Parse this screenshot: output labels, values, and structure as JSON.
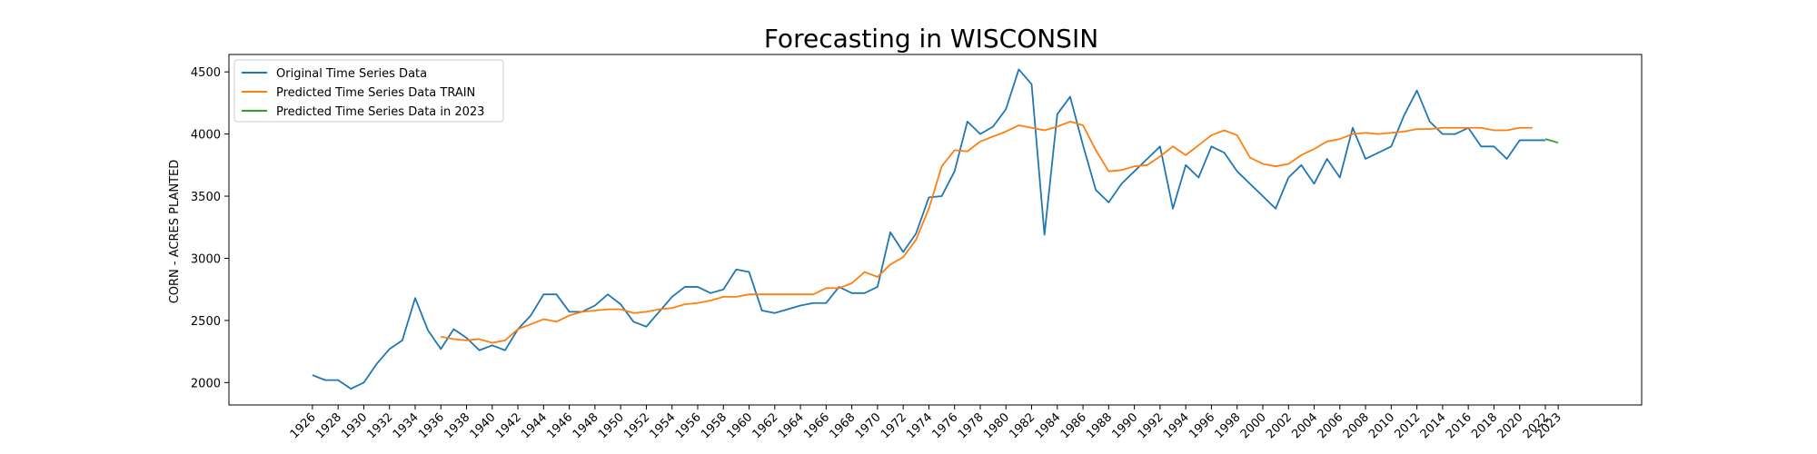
{
  "chart_data": {
    "type": "line",
    "title": "Forecasting in WISCONSIN",
    "xlabel": "",
    "ylabel": "CORN - ACRES PLANTED",
    "xlim": [
      1919.5,
      2029.5
    ],
    "ylim": [
      1820,
      4640
    ],
    "yticks": [
      2000,
      2500,
      3000,
      3500,
      4000,
      4500
    ],
    "xticks": [
      1926,
      1928,
      1930,
      1932,
      1934,
      1936,
      1938,
      1940,
      1942,
      1944,
      1946,
      1948,
      1950,
      1952,
      1954,
      1956,
      1958,
      1960,
      1962,
      1964,
      1966,
      1968,
      1970,
      1972,
      1974,
      1976,
      1978,
      1980,
      1982,
      1984,
      1986,
      1988,
      1990,
      1992,
      1994,
      1996,
      1998,
      2000,
      2002,
      2004,
      2006,
      2008,
      2010,
      2012,
      2014,
      2016,
      2018,
      2020,
      2022,
      2023
    ],
    "grid": false,
    "legend_position": "top-left",
    "series": [
      {
        "name": "Original Time Series Data",
        "color": "#1f77b4",
        "x": [
          1926,
          1927,
          1928,
          1929,
          1930,
          1931,
          1932,
          1933,
          1934,
          1935,
          1936,
          1937,
          1938,
          1939,
          1940,
          1941,
          1942,
          1943,
          1944,
          1945,
          1946,
          1947,
          1948,
          1949,
          1950,
          1951,
          1952,
          1953,
          1954,
          1955,
          1956,
          1957,
          1958,
          1959,
          1960,
          1961,
          1962,
          1963,
          1964,
          1965,
          1966,
          1967,
          1968,
          1969,
          1970,
          1971,
          1972,
          1973,
          1974,
          1975,
          1976,
          1977,
          1978,
          1979,
          1980,
          1981,
          1982,
          1983,
          1984,
          1985,
          1986,
          1987,
          1988,
          1989,
          1990,
          1991,
          1992,
          1993,
          1994,
          1995,
          1996,
          1997,
          1998,
          1999,
          2000,
          2001,
          2002,
          2003,
          2004,
          2005,
          2006,
          2007,
          2008,
          2009,
          2010,
          2011,
          2012,
          2013,
          2014,
          2015,
          2016,
          2017,
          2018,
          2019,
          2020,
          2021,
          2022
        ],
        "values": [
          2060,
          2020,
          2020,
          1950,
          2000,
          2150,
          2270,
          2340,
          2680,
          2420,
          2270,
          2430,
          2360,
          2260,
          2300,
          2260,
          2430,
          2540,
          2710,
          2710,
          2570,
          2570,
          2620,
          2710,
          2630,
          2490,
          2450,
          2570,
          2690,
          2770,
          2770,
          2720,
          2750,
          2910,
          2890,
          2580,
          2560,
          2590,
          2620,
          2640,
          2640,
          2770,
          2720,
          2720,
          2770,
          3210,
          3050,
          3200,
          3490,
          3500,
          3700,
          4100,
          4000,
          4060,
          4200,
          4520,
          4400,
          3190,
          4160,
          4300,
          3910,
          3550,
          3450,
          3600,
          3700,
          3800,
          3900,
          3400,
          3750,
          3650,
          3900,
          3850,
          3700,
          3600,
          3500,
          3400,
          3650,
          3750,
          3600,
          3800,
          3650,
          4050,
          3800,
          3850,
          3900,
          4150,
          4350,
          4100,
          4000,
          4000,
          4050,
          3900,
          3900,
          3800,
          3950,
          3950,
          3950
        ]
      },
      {
        "name": "Predicted Time Series Data TRAIN",
        "color": "#ff7f0e",
        "x": [
          1936,
          1937,
          1938,
          1939,
          1940,
          1941,
          1942,
          1943,
          1944,
          1945,
          1946,
          1947,
          1948,
          1949,
          1950,
          1951,
          1952,
          1953,
          1954,
          1955,
          1956,
          1957,
          1958,
          1959,
          1960,
          1961,
          1962,
          1963,
          1964,
          1965,
          1966,
          1967,
          1968,
          1969,
          1970,
          1971,
          1972,
          1973,
          1974,
          1975,
          1976,
          1977,
          1978,
          1979,
          1980,
          1981,
          1982,
          1983,
          1984,
          1985,
          1986,
          1987,
          1988,
          1989,
          1990,
          1991,
          1992,
          1993,
          1994,
          1995,
          1996,
          1997,
          1998,
          1999,
          2000,
          2001,
          2002,
          2003,
          2004,
          2005,
          2006,
          2007,
          2008,
          2009,
          2010,
          2011,
          2012,
          2013,
          2014,
          2015,
          2016,
          2017,
          2018,
          2019,
          2020,
          2021
        ],
        "values": [
          2370,
          2350,
          2340,
          2350,
          2320,
          2340,
          2430,
          2470,
          2510,
          2490,
          2540,
          2570,
          2580,
          2590,
          2590,
          2560,
          2570,
          2590,
          2600,
          2630,
          2640,
          2660,
          2690,
          2690,
          2710,
          2710,
          2710,
          2710,
          2710,
          2710,
          2760,
          2760,
          2800,
          2890,
          2850,
          2950,
          3010,
          3150,
          3400,
          3740,
          3870,
          3860,
          3940,
          3980,
          4020,
          4070,
          4050,
          4030,
          4060,
          4100,
          4070,
          3870,
          3700,
          3710,
          3740,
          3750,
          3820,
          3900,
          3830,
          3910,
          3990,
          4030,
          3990,
          3810,
          3760,
          3740,
          3760,
          3830,
          3880,
          3940,
          3960,
          4000,
          4010,
          4000,
          4010,
          4020,
          4040,
          4040,
          4050,
          4050,
          4050,
          4050,
          4030,
          4030,
          4050,
          4050
        ]
      },
      {
        "name": "Predicted Time Series Data in 2023",
        "color": "#2ca02c",
        "x": [
          2022,
          2023
        ],
        "values": [
          3960,
          3930
        ]
      }
    ]
  }
}
